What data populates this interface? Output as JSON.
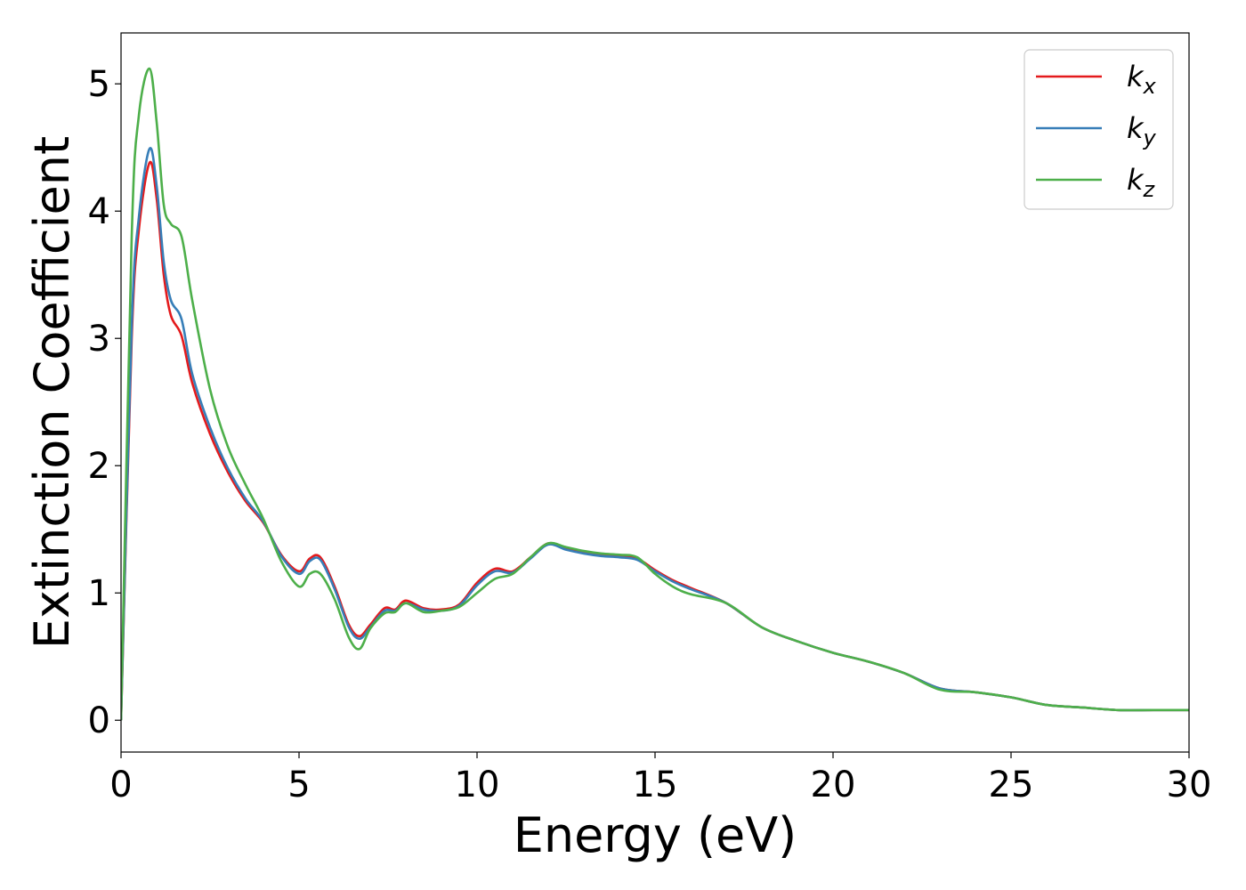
{
  "chart_data": {
    "type": "line",
    "xlabel": "Energy (eV)",
    "ylabel": "Extinction Coefficient",
    "xlim": [
      0,
      30
    ],
    "ylim": [
      -0.25,
      5.4
    ],
    "xticks": [
      0,
      5,
      10,
      15,
      20,
      25,
      30
    ],
    "yticks": [
      0,
      1,
      2,
      3,
      4,
      5
    ],
    "grid": false,
    "legend": "top-right",
    "x": [
      0,
      0.3,
      0.5,
      0.8,
      1.0,
      1.2,
      1.4,
      1.7,
      2.0,
      2.5,
      3.0,
      3.5,
      4.0,
      4.5,
      5.0,
      5.3,
      5.6,
      6.0,
      6.4,
      6.7,
      7.0,
      7.4,
      7.7,
      8.0,
      8.5,
      9.0,
      9.5,
      10.0,
      10.5,
      11.0,
      11.5,
      12.0,
      12.5,
      13.0,
      13.5,
      14.0,
      14.5,
      15.0,
      15.5,
      16.0,
      17.0,
      18.0,
      19.0,
      20.0,
      21.0,
      22.0,
      23.0,
      24.0,
      25.0,
      26.0,
      27.0,
      28.0,
      29.0,
      30.0
    ],
    "series": [
      {
        "name": "k",
        "subscript": "x",
        "color": "#e41a1c",
        "values": [
          0,
          3.0,
          3.85,
          4.38,
          4.1,
          3.5,
          3.18,
          3.02,
          2.65,
          2.25,
          1.95,
          1.72,
          1.55,
          1.3,
          1.17,
          1.27,
          1.28,
          1.05,
          0.75,
          0.66,
          0.75,
          0.88,
          0.87,
          0.94,
          0.88,
          0.87,
          0.91,
          1.08,
          1.19,
          1.17,
          1.28,
          1.39,
          1.35,
          1.32,
          1.3,
          1.29,
          1.27,
          1.18,
          1.1,
          1.04,
          0.92,
          0.73,
          0.62,
          0.53,
          0.46,
          0.37,
          0.25,
          0.22,
          0.18,
          0.12,
          0.1,
          0.08,
          0.08,
          0.08
        ]
      },
      {
        "name": "k",
        "subscript": "y",
        "color": "#377eb8",
        "values": [
          0,
          3.1,
          3.95,
          4.49,
          4.2,
          3.6,
          3.3,
          3.15,
          2.72,
          2.3,
          1.98,
          1.74,
          1.56,
          1.29,
          1.15,
          1.25,
          1.26,
          1.03,
          0.73,
          0.64,
          0.73,
          0.86,
          0.86,
          0.92,
          0.87,
          0.86,
          0.9,
          1.06,
          1.17,
          1.16,
          1.27,
          1.38,
          1.34,
          1.31,
          1.29,
          1.28,
          1.26,
          1.17,
          1.09,
          1.03,
          0.92,
          0.73,
          0.62,
          0.53,
          0.46,
          0.37,
          0.25,
          0.22,
          0.18,
          0.12,
          0.1,
          0.08,
          0.08,
          0.08
        ]
      },
      {
        "name": "k",
        "subscript": "z",
        "color": "#4daf4a",
        "values": [
          0,
          3.8,
          4.75,
          5.12,
          4.7,
          4.05,
          3.9,
          3.8,
          3.3,
          2.6,
          2.15,
          1.85,
          1.58,
          1.25,
          1.05,
          1.15,
          1.15,
          0.95,
          0.65,
          0.56,
          0.72,
          0.84,
          0.85,
          0.92,
          0.85,
          0.86,
          0.89,
          1.0,
          1.11,
          1.15,
          1.28,
          1.39,
          1.36,
          1.33,
          1.31,
          1.3,
          1.28,
          1.15,
          1.05,
          0.99,
          0.92,
          0.73,
          0.62,
          0.53,
          0.46,
          0.37,
          0.24,
          0.22,
          0.18,
          0.12,
          0.1,
          0.08,
          0.08,
          0.08
        ]
      }
    ]
  }
}
